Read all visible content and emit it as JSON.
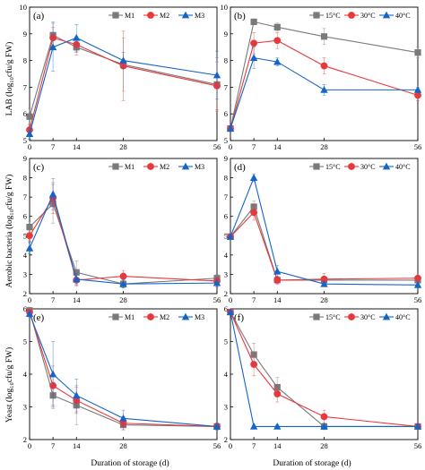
{
  "figure": {
    "xlabel": "Duration of storage (d)",
    "xticks": [
      0,
      7,
      14,
      28,
      56
    ],
    "row_ylabels": [
      "LAB (log₁₀cfu/g FW)",
      "Aerobic bacteria (log₁₀cfu/g FW)",
      "Yeast (log₁₀cfu/g FW)"
    ]
  },
  "colors": {
    "M1": "#7a7a7a",
    "M2": "#e8383d",
    "M3": "#1565c8",
    "T15": "#7a7a7a",
    "T30": "#e8383d",
    "T40": "#1565c8"
  },
  "chart_data": [
    {
      "type": "line",
      "panel": "(a)",
      "row": 0,
      "col": 0,
      "x": [
        0,
        7,
        14,
        28,
        56
      ],
      "ylim": [
        5,
        10
      ],
      "yticks": [
        5,
        6,
        7,
        8,
        9,
        10
      ],
      "series": [
        {
          "name": "M1",
          "marker": "square",
          "color_key": "M1",
          "values": [
            5.9,
            8.95,
            8.5,
            7.85,
            7.1
          ],
          "errors": [
            0.3,
            0.5,
            0.3,
            1.0,
            1.0
          ]
        },
        {
          "name": "M2",
          "marker": "circle",
          "color_key": "M2",
          "values": [
            5.4,
            8.85,
            8.6,
            7.8,
            7.05
          ],
          "errors": [
            0.2,
            0.4,
            0.3,
            1.3,
            0.9
          ]
        },
        {
          "name": "M3",
          "marker": "triangle",
          "color_key": "M3",
          "values": [
            5.25,
            8.5,
            8.85,
            8.0,
            7.45
          ],
          "errors": [
            0.2,
            0.9,
            0.5,
            0.3,
            0.9
          ]
        }
      ]
    },
    {
      "type": "line",
      "panel": "(b)",
      "row": 0,
      "col": 1,
      "x": [
        0,
        7,
        14,
        28,
        56
      ],
      "ylim": [
        5,
        10
      ],
      "yticks": [
        5,
        6,
        7,
        8,
        9,
        10
      ],
      "series": [
        {
          "name": "15°C",
          "marker": "square",
          "color_key": "T15",
          "values": [
            5.45,
            9.45,
            9.25,
            8.9,
            8.3
          ],
          "errors": [
            0.1,
            0.1,
            0.15,
            0.3,
            0.2
          ]
        },
        {
          "name": "30°C",
          "marker": "circle",
          "color_key": "T30",
          "values": [
            5.45,
            8.65,
            8.75,
            7.8,
            6.7
          ],
          "errors": [
            0.1,
            0.4,
            0.3,
            0.3,
            0.2
          ]
        },
        {
          "name": "40°C",
          "marker": "triangle",
          "color_key": "T40",
          "values": [
            5.45,
            8.1,
            7.95,
            6.9,
            6.9
          ],
          "errors": [
            0.1,
            0.4,
            0.15,
            0.2,
            0.1
          ]
        }
      ]
    },
    {
      "type": "line",
      "panel": "(c)",
      "row": 1,
      "col": 0,
      "x": [
        0,
        7,
        14,
        28,
        56
      ],
      "ylim": [
        2,
        9
      ],
      "yticks": [
        2,
        3,
        4,
        5,
        6,
        7,
        8,
        9
      ],
      "series": [
        {
          "name": "M1",
          "marker": "square",
          "color_key": "M1",
          "values": [
            5.45,
            6.65,
            3.1,
            2.5,
            2.8
          ],
          "errors": [
            0.3,
            1.0,
            0.6,
            0.2,
            0.2
          ]
        },
        {
          "name": "M2",
          "marker": "circle",
          "color_key": "M2",
          "values": [
            5.0,
            6.95,
            2.7,
            2.9,
            2.65
          ],
          "errors": [
            0.3,
            0.8,
            0.3,
            0.3,
            0.2
          ]
        },
        {
          "name": "M3",
          "marker": "triangle",
          "color_key": "M3",
          "values": [
            4.35,
            7.15,
            2.75,
            2.5,
            2.55
          ],
          "errors": [
            0.3,
            0.8,
            0.3,
            0.2,
            0.2
          ]
        }
      ]
    },
    {
      "type": "line",
      "panel": "(d)",
      "row": 1,
      "col": 1,
      "x": [
        0,
        7,
        14,
        28,
        56
      ],
      "ylim": [
        2,
        9
      ],
      "yticks": [
        2,
        3,
        4,
        5,
        6,
        7,
        8,
        9
      ],
      "series": [
        {
          "name": "15°C",
          "marker": "square",
          "color_key": "T15",
          "values": [
            4.95,
            6.5,
            2.7,
            2.7,
            2.7
          ],
          "errors": [
            0.1,
            0.3,
            0.2,
            0.2,
            0.1
          ]
        },
        {
          "name": "30°C",
          "marker": "circle",
          "color_key": "T30",
          "values": [
            4.95,
            6.2,
            2.7,
            2.75,
            2.8
          ],
          "errors": [
            0.1,
            0.4,
            0.2,
            0.3,
            0.1
          ]
        },
        {
          "name": "40°C",
          "marker": "triangle",
          "color_key": "T40",
          "values": [
            4.95,
            8.0,
            3.15,
            2.5,
            2.45
          ],
          "errors": [
            0.1,
            0.2,
            0.3,
            0.1,
            0.1
          ]
        }
      ]
    },
    {
      "type": "line",
      "panel": "(e)",
      "row": 2,
      "col": 0,
      "x": [
        0,
        7,
        14,
        28,
        56
      ],
      "ylim": [
        2,
        6
      ],
      "yticks": [
        2,
        3,
        4,
        5,
        6
      ],
      "series": [
        {
          "name": "M1",
          "marker": "square",
          "color_key": "M1",
          "values": [
            5.95,
            3.35,
            3.05,
            2.45,
            2.4
          ],
          "errors": [
            0.1,
            0.4,
            0.6,
            0.15,
            0.1
          ]
        },
        {
          "name": "M2",
          "marker": "circle",
          "color_key": "M2",
          "values": [
            5.9,
            3.65,
            3.2,
            2.5,
            2.4
          ],
          "errors": [
            0.1,
            0.6,
            0.4,
            0.2,
            0.1
          ]
        },
        {
          "name": "M3",
          "marker": "triangle",
          "color_key": "M3",
          "values": [
            5.85,
            4.0,
            3.35,
            2.65,
            2.4
          ],
          "errors": [
            0.1,
            1.0,
            0.5,
            0.25,
            0.1
          ]
        }
      ]
    },
    {
      "type": "line",
      "panel": "(f)",
      "row": 2,
      "col": 1,
      "x": [
        0,
        7,
        14,
        28,
        56
      ],
      "ylim": [
        2,
        6
      ],
      "yticks": [
        2,
        3,
        4,
        5,
        6
      ],
      "series": [
        {
          "name": "15°C",
          "marker": "square",
          "color_key": "T15",
          "values": [
            5.9,
            4.6,
            3.6,
            2.4,
            2.4
          ],
          "errors": [
            0.05,
            0.35,
            0.3,
            0.1,
            0.05
          ]
        },
        {
          "name": "30°C",
          "marker": "circle",
          "color_key": "T30",
          "values": [
            5.9,
            4.3,
            3.4,
            2.7,
            2.4
          ],
          "errors": [
            0.05,
            0.35,
            0.25,
            0.2,
            0.05
          ]
        },
        {
          "name": "40°C",
          "marker": "triangle",
          "color_key": "T40",
          "values": [
            5.9,
            2.4,
            2.4,
            2.4,
            2.4
          ],
          "errors": [
            0.05,
            0.05,
            0.05,
            0.05,
            0.05
          ]
        }
      ]
    }
  ]
}
